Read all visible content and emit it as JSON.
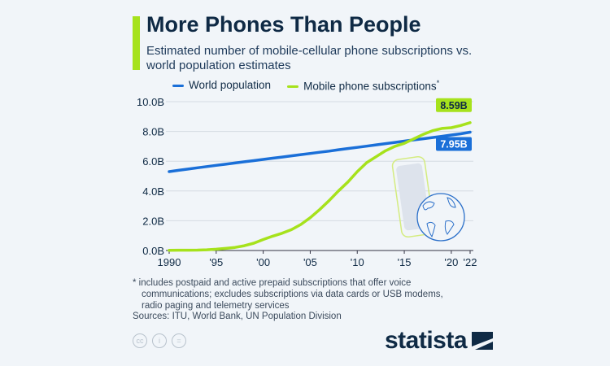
{
  "header": {
    "title": "More Phones Than People",
    "subtitle": "Estimated number of mobile-cellular phone subscriptions vs. world population estimates"
  },
  "colors": {
    "accent": "#a6e21c",
    "population": "#1a6fd8",
    "mobile": "#a6e21c",
    "background": "#f1f5f9"
  },
  "chart_data": {
    "type": "line",
    "title": "More Phones Than People",
    "subtitle": "Estimated number of mobile-cellular phone subscriptions vs. world population estimates",
    "xlim": [
      1990,
      2022
    ],
    "ylim": [
      0,
      10
    ],
    "y_ticks": [
      "0.0B",
      "2.0B",
      "4.0B",
      "6.0B",
      "8.0B",
      "10.0B"
    ],
    "x_ticks": [
      {
        "year": 1990,
        "label": "1990"
      },
      {
        "year": 1995,
        "label": "'95"
      },
      {
        "year": 2000,
        "label": "'00"
      },
      {
        "year": 2005,
        "label": "'05"
      },
      {
        "year": 2010,
        "label": "'10"
      },
      {
        "year": 2015,
        "label": "'15"
      },
      {
        "year": 2020,
        "label": "'20"
      },
      {
        "year": 2022,
        "label": "'22"
      }
    ],
    "grid": true,
    "legend_position": "top",
    "x": [
      1990,
      1991,
      1992,
      1993,
      1994,
      1995,
      1996,
      1997,
      1998,
      1999,
      2000,
      2001,
      2002,
      2003,
      2004,
      2005,
      2006,
      2007,
      2008,
      2009,
      2010,
      2011,
      2012,
      2013,
      2014,
      2015,
      2016,
      2017,
      2018,
      2019,
      2020,
      2021,
      2022
    ],
    "series": [
      {
        "name": "World population",
        "color": "#1a6fd8",
        "end_label": "7.95B",
        "values": [
          5.3,
          5.39,
          5.47,
          5.56,
          5.64,
          5.72,
          5.8,
          5.88,
          5.96,
          6.04,
          6.12,
          6.2,
          6.28,
          6.36,
          6.44,
          6.52,
          6.6,
          6.68,
          6.77,
          6.85,
          6.93,
          7.01,
          7.1,
          7.18,
          7.26,
          7.35,
          7.43,
          7.51,
          7.59,
          7.67,
          7.76,
          7.84,
          7.95
        ]
      },
      {
        "name": "Mobile phone subscriptions",
        "legend_suffix": "*",
        "color": "#a6e21c",
        "end_label": "8.59B",
        "values": [
          0.01,
          0.02,
          0.02,
          0.03,
          0.05,
          0.09,
          0.14,
          0.21,
          0.32,
          0.49,
          0.74,
          0.96,
          1.16,
          1.4,
          1.75,
          2.2,
          2.75,
          3.35,
          4.0,
          4.6,
          5.3,
          5.9,
          6.3,
          6.7,
          7.0,
          7.2,
          7.5,
          7.8,
          8.05,
          8.2,
          8.25,
          8.4,
          8.59
        ]
      }
    ]
  },
  "footnote": {
    "line1": "* includes postpaid and active prepaid subscriptions that offer voice",
    "line2": "communications; excludes subscriptions via data cards or USB modems,",
    "line3": "radio paging and telemetry services"
  },
  "sources": "Sources: ITU, World Bank, UN Population Division",
  "license_icons": {
    "cc": "cc",
    "by": "i",
    "nd": "="
  },
  "brand": "statista"
}
